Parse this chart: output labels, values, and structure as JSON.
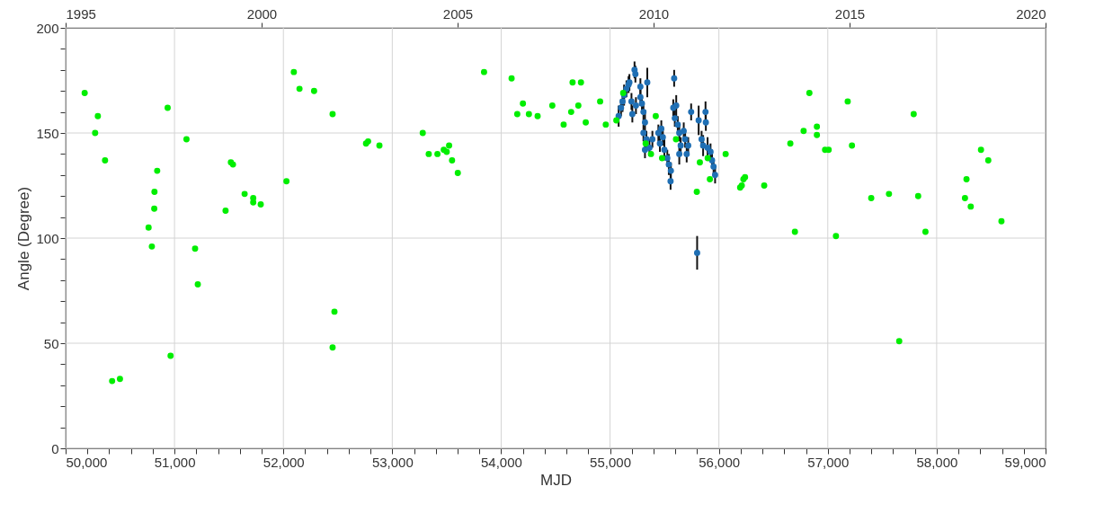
{
  "chart_data": {
    "type": "scatter",
    "xlabel": "MJD",
    "ylabel": "Angle (Degree)",
    "marker": "circle",
    "grid": true,
    "xlim": [
      50000,
      59000
    ],
    "xticks": [
      {
        "value": 50000,
        "label": "50,000"
      },
      {
        "value": 50200,
        "label": null
      },
      {
        "value": 50400,
        "label": null
      },
      {
        "value": 50600,
        "label": null
      },
      {
        "value": 50800,
        "label": null
      },
      {
        "value": 51000,
        "label": "51,000"
      },
      {
        "value": 51200,
        "label": null
      },
      {
        "value": 51400,
        "label": null
      },
      {
        "value": 51600,
        "label": null
      },
      {
        "value": 51800,
        "label": null
      },
      {
        "value": 52000,
        "label": "52,000"
      },
      {
        "value": 52200,
        "label": null
      },
      {
        "value": 52400,
        "label": null
      },
      {
        "value": 52600,
        "label": null
      },
      {
        "value": 52800,
        "label": null
      },
      {
        "value": 53000,
        "label": "53,000"
      },
      {
        "value": 53200,
        "label": null
      },
      {
        "value": 53400,
        "label": null
      },
      {
        "value": 53600,
        "label": null
      },
      {
        "value": 53800,
        "label": null
      },
      {
        "value": 54000,
        "label": "54,000"
      },
      {
        "value": 54200,
        "label": null
      },
      {
        "value": 54400,
        "label": null
      },
      {
        "value": 54600,
        "label": null
      },
      {
        "value": 54800,
        "label": null
      },
      {
        "value": 55000,
        "label": "55,000"
      },
      {
        "value": 55200,
        "label": null
      },
      {
        "value": 55400,
        "label": null
      },
      {
        "value": 55600,
        "label": null
      },
      {
        "value": 55800,
        "label": null
      },
      {
        "value": 56000,
        "label": "56,000"
      },
      {
        "value": 56200,
        "label": null
      },
      {
        "value": 56400,
        "label": null
      },
      {
        "value": 56600,
        "label": null
      },
      {
        "value": 56800,
        "label": null
      },
      {
        "value": 57000,
        "label": "57,000"
      },
      {
        "value": 57200,
        "label": null
      },
      {
        "value": 57400,
        "label": null
      },
      {
        "value": 57600,
        "label": null
      },
      {
        "value": 57800,
        "label": null
      },
      {
        "value": 58000,
        "label": "58,000"
      },
      {
        "value": 58200,
        "label": null
      },
      {
        "value": 58400,
        "label": null
      },
      {
        "value": 58600,
        "label": null
      },
      {
        "value": 58800,
        "label": null
      },
      {
        "value": 59000,
        "label": "59,000"
      }
    ],
    "x2lim": [
      1995,
      2020
    ],
    "x2ticks": [
      1995,
      2000,
      2005,
      2010,
      2015,
      2020
    ],
    "ylim": [
      0,
      200
    ],
    "yticks": [
      0,
      {
        "value": 10,
        "label": null
      },
      {
        "value": 20,
        "label": null
      },
      {
        "value": 30,
        "label": null
      },
      {
        "value": 40,
        "label": null
      },
      50,
      {
        "value": 60,
        "label": null
      },
      {
        "value": 70,
        "label": null
      },
      {
        "value": 80,
        "label": null
      },
      {
        "value": 90,
        "label": null
      },
      100,
      {
        "value": 110,
        "label": null
      },
      {
        "value": 120,
        "label": null
      },
      {
        "value": 130,
        "label": null
      },
      {
        "value": 140,
        "label": null
      },
      150,
      {
        "value": 160,
        "label": null
      },
      {
        "value": 170,
        "label": null
      },
      {
        "value": 180,
        "label": null
      },
      {
        "value": 190,
        "label": null
      },
      200
    ],
    "series": [
      {
        "color": "#1f6fb4",
        "x": [
          55079,
          55101,
          55115,
          55129,
          55151,
          55170,
          55178,
          55197,
          55205,
          55225,
          55233,
          55238,
          55279,
          55279,
          55293,
          55307,
          55321,
          55307,
          55334,
          55342,
          55321,
          55362,
          55389,
          55444,
          55458,
          55471,
          55485,
          55499,
          55526,
          55540,
          55559,
          55556,
          55589,
          55581,
          55608,
          55595,
          55622,
          55636,
          55649,
          55636,
          55677,
          55690,
          55704,
          55718,
          55745,
          55814,
          55841,
          55855,
          55877,
          55880,
          55896,
          55923,
          55937,
          55951,
          55965,
          55800
        ],
        "values": [
          158,
          162,
          165,
          168,
          171,
          173,
          174,
          165,
          159,
          180,
          178,
          163,
          172,
          167,
          164,
          160,
          155,
          150,
          147,
          174,
          142,
          143,
          147,
          150,
          145,
          152,
          148,
          142,
          138,
          135,
          132,
          127,
          176,
          162,
          163,
          157,
          154,
          150,
          144,
          140,
          151,
          147,
          140,
          144,
          160,
          156,
          147,
          144,
          160,
          155,
          143,
          141,
          137,
          134,
          130,
          93
        ],
        "errors": [
          5,
          4,
          5,
          5,
          4,
          4,
          4,
          4,
          4,
          4,
          4,
          4,
          4,
          4,
          4,
          4,
          6,
          4,
          4,
          7,
          4,
          4,
          4,
          4,
          4,
          4,
          4,
          5,
          4,
          5,
          4,
          4,
          4,
          4,
          5,
          4,
          4,
          4,
          4,
          5,
          4,
          4,
          4,
          4,
          4,
          7,
          4,
          5,
          5,
          4,
          5,
          4,
          4,
          4,
          4,
          8
        ]
      },
      {
        "color": "#00ee00",
        "x": [
          50175,
          50296,
          50271,
          50362,
          50427,
          50499,
          50937,
          50762,
          50792,
          50814,
          50816,
          50841,
          50964,
          51110,
          51189,
          51214,
          51469,
          51518,
          51537,
          51644,
          51723,
          51723,
          51792,
          52028,
          52096,
          52148,
          52282,
          52452,
          52452,
          52469,
          52759,
          52778,
          52882,
          53280,
          53335,
          53415,
          53473,
          53522,
          53500,
          53549,
          53602,
          53843,
          54096,
          54200,
          54148,
          54255,
          54335,
          54470,
          54574,
          54643,
          54656,
          54733,
          54709,
          54777,
          54909,
          54961,
          55058,
          55121,
          55327,
          55376,
          55420,
          55478,
          55606,
          55797,
          55825,
          55897,
          55917,
          56062,
          56195,
          56210,
          56225,
          56240,
          56416,
          56656,
          56698,
          56778,
          56831,
          56900,
          56900,
          56975,
          57008,
          57075,
          57183,
          57222,
          57399,
          57562,
          57656,
          57789,
          57830,
          57897,
          58260,
          58274,
          58313,
          58407,
          58474,
          58595
        ],
        "values": [
          169,
          158,
          150,
          137,
          32,
          33,
          162,
          105,
          96,
          114,
          122,
          132,
          44,
          147,
          95,
          78,
          113,
          136,
          135,
          121,
          119,
          117,
          116,
          127,
          179,
          171,
          170,
          159,
          48,
          65,
          145,
          146,
          144,
          150,
          140,
          140,
          142,
          144,
          141,
          137,
          131,
          179,
          176,
          164,
          159,
          159,
          158,
          163,
          154,
          160,
          174,
          174,
          163,
          155,
          165,
          154,
          156,
          169,
          145,
          140,
          158,
          138,
          147,
          122,
          136,
          138,
          128,
          140,
          124,
          125,
          128,
          129,
          125,
          145,
          103,
          151,
          169,
          153,
          149,
          142,
          142,
          101,
          165,
          144,
          119,
          121,
          51,
          159,
          120,
          103,
          119,
          128,
          115,
          142,
          137,
          108
        ]
      }
    ]
  }
}
